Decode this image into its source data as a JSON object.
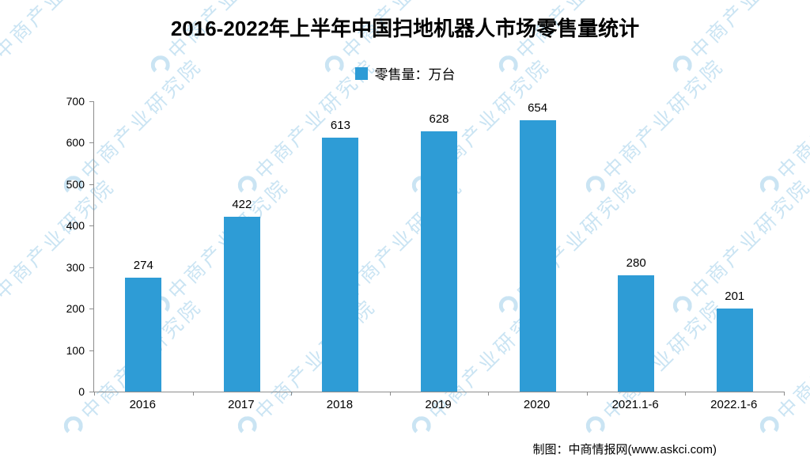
{
  "chart_data": {
    "type": "bar",
    "title": "2016-2022年上半年中国扫地机器人市场零售量统计",
    "legend": "零售量：万台",
    "categories": [
      "2016",
      "2017",
      "2018",
      "2019",
      "2020",
      "2021.1-6",
      "2022.1-6"
    ],
    "values": [
      274,
      422,
      613,
      628,
      654,
      280,
      201
    ],
    "ylabel": "",
    "xlabel": "",
    "ylim": [
      0,
      700
    ],
    "ytick_interval": 100,
    "grid": false,
    "legend_position": "top-center",
    "bar_color": "#2E9CD6"
  },
  "source": "制图：中商情报网(www.askci.com)",
  "watermark": {
    "text": "中商产业研究院",
    "color": "#9FCFEA"
  }
}
